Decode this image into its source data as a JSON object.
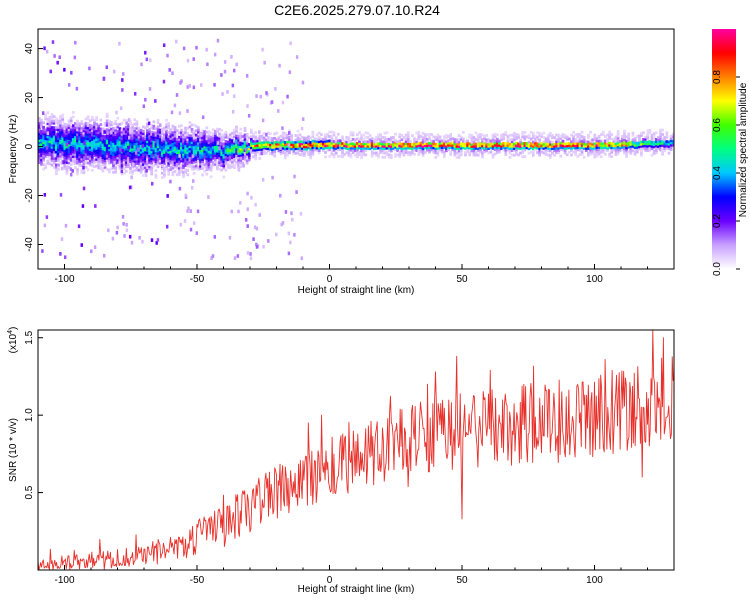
{
  "chart_data": [
    {
      "type": "heatmap",
      "title": "C2E6.2025.279.07.10.R24",
      "xlabel": "Height of straight line (km)",
      "ylabel": "Frequency (Hz)",
      "xlim": [
        -110,
        130
      ],
      "ylim": [
        -50,
        48
      ],
      "xticks": [
        -100,
        -50,
        0,
        50,
        100
      ],
      "yticks": [
        -40,
        -20,
        0,
        20,
        40
      ],
      "colorbar": {
        "label": "Normalized spectral amplitude",
        "range": [
          0,
          1
        ],
        "ticks": [
          "0.0",
          "0.2",
          "0.4",
          "0.6",
          "0.8"
        ],
        "colors": [
          "#ffffff",
          "#c8a0ff",
          "#6a00ff",
          "#0000ff",
          "#00c8ff",
          "#00ff80",
          "#40ff00",
          "#ffff00",
          "#ff8000",
          "#ff0000",
          "#ff00a0"
        ]
      },
      "band": {
        "center_hz": [
          [
            -110,
            1
          ],
          [
            -90,
            0
          ],
          [
            -70,
            -1
          ],
          [
            -50,
            -2
          ],
          [
            -40,
            -3
          ],
          [
            -35,
            -1
          ],
          [
            -25,
            0
          ],
          [
            0,
            0
          ],
          [
            50,
            0
          ],
          [
            100,
            0
          ],
          [
            130,
            1
          ]
        ],
        "halfwidth_hz": [
          [
            -110,
            6
          ],
          [
            -80,
            6
          ],
          [
            -50,
            5
          ],
          [
            -35,
            3
          ],
          [
            -30,
            2
          ],
          [
            0,
            1.5
          ],
          [
            130,
            1.5
          ]
        ],
        "peak_amplitude": [
          [
            -110,
            0.45
          ],
          [
            -60,
            0.45
          ],
          [
            -40,
            0.5
          ],
          [
            -30,
            0.75
          ],
          [
            -10,
            1.0
          ],
          [
            100,
            1.0
          ],
          [
            115,
            0.75
          ],
          [
            130,
            0.45
          ]
        ]
      }
    },
    {
      "type": "line",
      "xlabel": "Height of straight line (km)",
      "ylabel": "SNR (10 * v/v)",
      "multiplier_label": "(x10",
      "multiplier_exp": "4",
      "multiplier_close": ")",
      "xlim": [
        -110,
        130
      ],
      "ylim": [
        0,
        1.55
      ],
      "xticks": [
        -100,
        -50,
        0,
        50,
        100
      ],
      "yticks": [
        "0.5",
        "1.0",
        "1.5"
      ],
      "ytick_values": [
        0.5,
        1.0,
        1.5
      ],
      "color": "#e8302a",
      "trend": [
        [
          -110,
          0.03
        ],
        [
          -90,
          0.06
        ],
        [
          -70,
          0.1
        ],
        [
          -55,
          0.17
        ],
        [
          -40,
          0.28
        ],
        [
          -25,
          0.45
        ],
        [
          -10,
          0.58
        ],
        [
          0,
          0.65
        ],
        [
          10,
          0.72
        ],
        [
          20,
          0.78
        ],
        [
          30,
          0.84
        ],
        [
          40,
          0.88
        ],
        [
          50,
          0.9
        ],
        [
          60,
          0.92
        ],
        [
          75,
          0.94
        ],
        [
          90,
          0.97
        ],
        [
          100,
          1.0
        ],
        [
          110,
          1.04
        ],
        [
          120,
          1.08
        ],
        [
          130,
          1.1
        ]
      ],
      "noise": [
        [
          -110,
          0.04
        ],
        [
          -60,
          0.08
        ],
        [
          -40,
          0.15
        ],
        [
          0,
          0.2
        ],
        [
          50,
          0.25
        ],
        [
          100,
          0.28
        ],
        [
          130,
          0.3
        ]
      ],
      "points_per_unit": 3,
      "features": [
        [
          50,
          0.33
        ],
        [
          40,
          1.28
        ],
        [
          48,
          1.38
        ],
        [
          122,
          1.55
        ],
        [
          126,
          1.5
        ],
        [
          118,
          0.6
        ],
        [
          -8,
          0.95
        ],
        [
          -3,
          1.0
        ]
      ]
    }
  ]
}
